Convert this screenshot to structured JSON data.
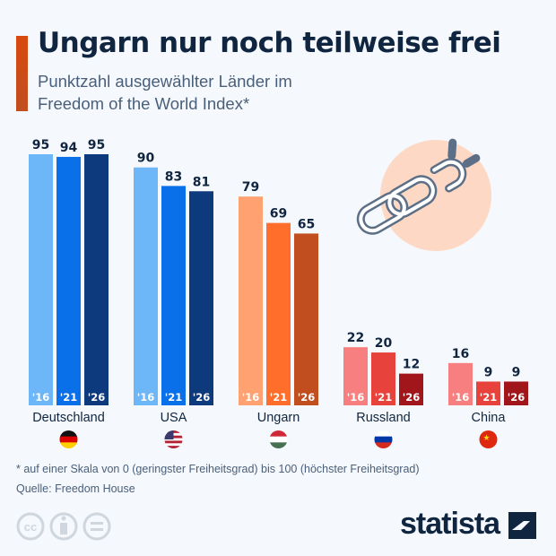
{
  "header": {
    "title": "Ungarn nur noch teilweise frei",
    "subtitle_line1": "Punktzahl ausgewählter Länder im",
    "subtitle_line2": "Freedom of the World Index*"
  },
  "chart_data": {
    "type": "bar",
    "categories": [
      "Deutschland",
      "USA",
      "Ungarn",
      "Russland",
      "China"
    ],
    "bar_labels": [
      "'16",
      "'21",
      "'26"
    ],
    "values": [
      [
        95,
        94,
        95
      ],
      [
        90,
        83,
        81
      ],
      [
        79,
        69,
        65
      ],
      [
        22,
        20,
        12
      ],
      [
        16,
        9,
        9
      ]
    ],
    "ylim": [
      0,
      100
    ],
    "grid": false,
    "colors": [
      [
        "#6db6f8",
        "#0a70ea",
        "#0c3a7c"
      ],
      [
        "#6db6f8",
        "#0a70ea",
        "#0c3a7c"
      ],
      [
        "#ffa170",
        "#ff6e2a",
        "#c04e1e"
      ],
      [
        "#f77f7f",
        "#e8423c",
        "#a1161a"
      ],
      [
        "#f77f7f",
        "#e8423c",
        "#a1161a"
      ]
    ],
    "flags": [
      "germany-flag",
      "usa-flag",
      "hungary-flag",
      "russia-flag",
      "china-flag"
    ]
  },
  "footer": {
    "note": "* auf einer Skala von 0 (geringster Freiheitsgrad) bis 100 (höchster Freiheitsgrad)",
    "source": "Quelle: Freedom House",
    "brand": "statista"
  },
  "icons": [
    "chain-broken-icon",
    "cc-icon",
    "by-icon",
    "nd-icon",
    "statista-logo-icon"
  ]
}
